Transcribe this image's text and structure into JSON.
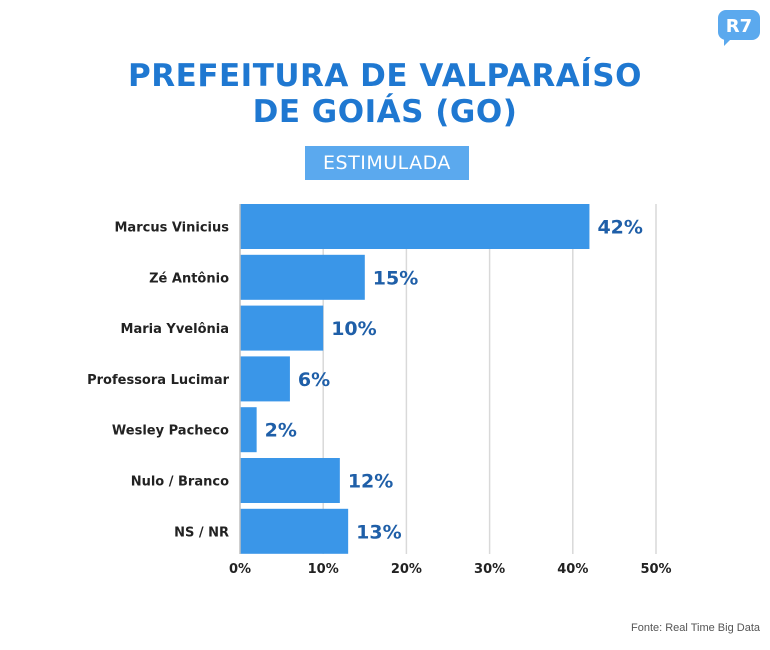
{
  "header": {
    "title_line1": "PREFEITURA DE VALPARAÍSO",
    "title_line2": "DE GOIÁS (GO)",
    "badge": "ESTIMULADA",
    "logo_text": "R7"
  },
  "footer": {
    "source": "Fonte: Real Time Big Data"
  },
  "colors": {
    "bar": "#3a96e8",
    "value_label": "#1f5fa8",
    "title": "#1f78d1",
    "badge": "#5ba9ee",
    "grid": "#d9d9d9"
  },
  "chart_data": {
    "type": "bar",
    "orientation": "horizontal",
    "categories": [
      "Marcus Vinicius",
      "Zé Antônio",
      "Maria Yvelônia",
      "Professora Lucimar",
      "Wesley Pacheco",
      "Nulo / Branco",
      "NS / NR"
    ],
    "values": [
      42,
      15,
      10,
      6,
      2,
      12,
      13
    ],
    "value_labels": [
      "42%",
      "15%",
      "10%",
      "6%",
      "2%",
      "12%",
      "13%"
    ],
    "xlim": [
      0,
      50
    ],
    "xticks": [
      0,
      10,
      20,
      30,
      40,
      50
    ],
    "xtick_labels": [
      "0%",
      "10%",
      "20%",
      "30%",
      "40%",
      "50%"
    ],
    "grid": true,
    "title": "PREFEITURA DE VALPARAÍSO DE GOIÁS (GO)"
  }
}
